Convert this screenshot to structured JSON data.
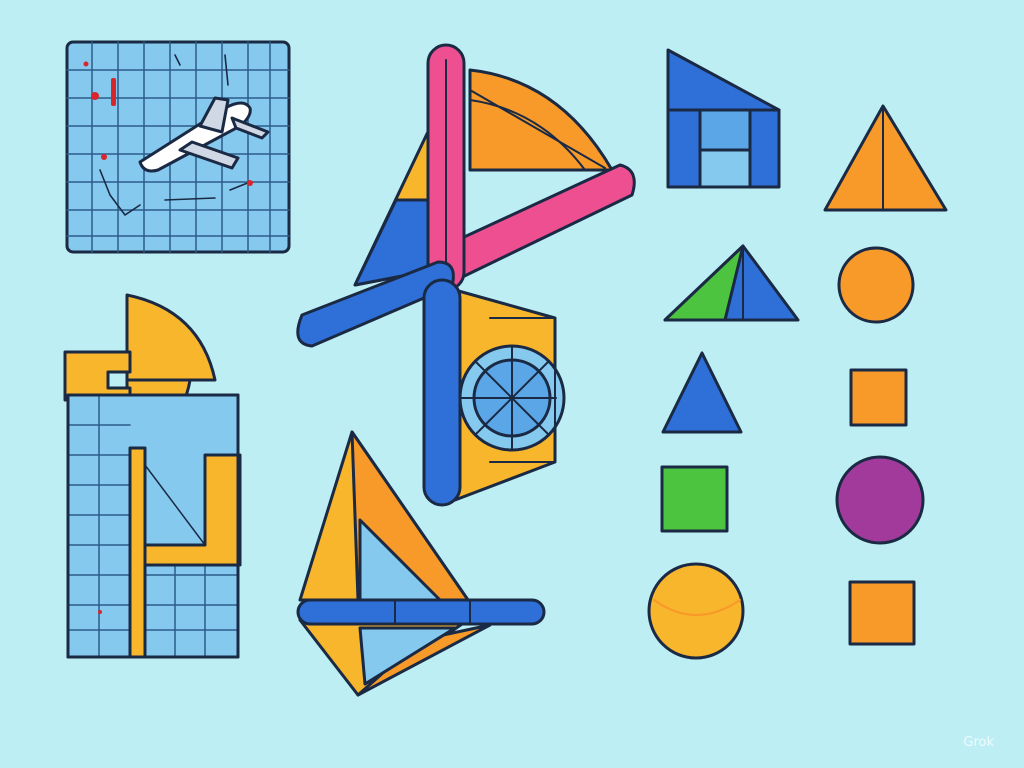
{
  "watermark": {
    "text": "Grok"
  },
  "colors": {
    "background": "#bdeef4",
    "outline": "#1b2a44",
    "blue": "#2f6fd8",
    "light_blue": "#86c9ef",
    "pink": "#ee4f91",
    "orange": "#f89a2a",
    "yellow": "#f8b62c",
    "green": "#4dc43f",
    "purple": "#a23a9c",
    "red": "#d8262b"
  },
  "shape_panel": {
    "items": [
      {
        "shape": "blue-green-triangle"
      },
      {
        "shape": "orange-triangle"
      },
      {
        "shape": "orange-circle"
      },
      {
        "shape": "blue-triangle"
      },
      {
        "shape": "orange-square"
      },
      {
        "shape": "green-square"
      },
      {
        "shape": "purple-circle"
      },
      {
        "shape": "orange-circle-large"
      },
      {
        "shape": "orange-square-lower"
      }
    ]
  }
}
